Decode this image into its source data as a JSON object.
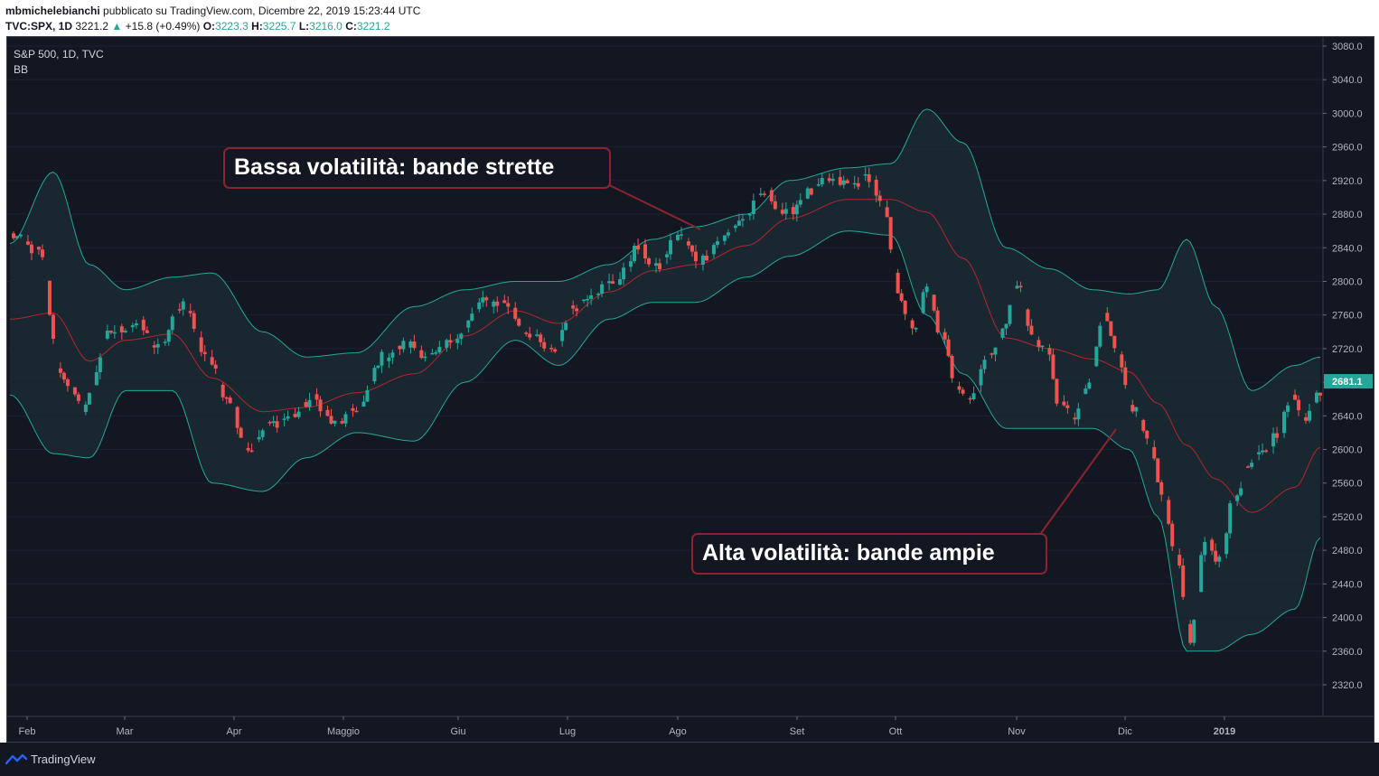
{
  "header": {
    "author": "mbmichelebianchi",
    "published_text": "pubblicato su TradingView.com, Dicembre 22, 2019 15:23:44 UTC",
    "symbol": "TVC:SPX, 1D",
    "last": "3221.2",
    "change_arrow": "▲",
    "change": "+15.8 (+0.49%)",
    "open_label": "O:",
    "open": "3223.3",
    "high_label": "H:",
    "high": "3225.7",
    "low_label": "L:",
    "low": "3216.0",
    "close_label": "C:",
    "close": "3221.2"
  },
  "legend": {
    "title": "S&P 500, 1D, TVC",
    "indicator": "BB"
  },
  "callouts": {
    "low_volatility": "Bassa volatilità: bande strette",
    "high_volatility": "Alta volatilità: bande ampie"
  },
  "footer": {
    "brand": "TradingView"
  },
  "colors": {
    "background": "#131722",
    "up": "#26a69a",
    "down": "#ef5350",
    "band": "#26a69a",
    "basis": "#b5252d",
    "callout_border": "#8b2430",
    "price_tag": "#26a69a"
  },
  "chart_data": {
    "type": "candlestick",
    "symbol": "S&P 500",
    "interval": "1D",
    "indicator": "Bollinger Bands",
    "x_ticks": [
      "Feb",
      "Mar",
      "Apr",
      "Maggio",
      "Giu",
      "Lug",
      "Ago",
      "Set",
      "Ott",
      "Nov",
      "Dic",
      "2019"
    ],
    "y_ticks": [
      3080.0,
      3040.0,
      3000.0,
      2960.0,
      2920.0,
      2880.0,
      2840.0,
      2800.0,
      2760.0,
      2720.0,
      2680.0,
      2640.0,
      2600.0,
      2560.0,
      2520.0,
      2480.0,
      2440.0,
      2400.0,
      2360.0,
      2320.0
    ],
    "ylim": [
      2290,
      3090
    ],
    "last_price_label": "2681.1",
    "close_anchors": [
      {
        "t": 0,
        "v": 2855
      },
      {
        "t": 8,
        "v": 2835
      },
      {
        "t": 14,
        "v": 2690
      },
      {
        "t": 20,
        "v": 2650
      },
      {
        "t": 28,
        "v": 2740
      },
      {
        "t": 35,
        "v": 2750
      },
      {
        "t": 41,
        "v": 2720
      },
      {
        "t": 48,
        "v": 2775
      },
      {
        "t": 54,
        "v": 2715
      },
      {
        "t": 60,
        "v": 2665
      },
      {
        "t": 66,
        "v": 2600
      },
      {
        "t": 72,
        "v": 2630
      },
      {
        "t": 78,
        "v": 2640
      },
      {
        "t": 84,
        "v": 2660
      },
      {
        "t": 90,
        "v": 2630
      },
      {
        "t": 97,
        "v": 2650
      },
      {
        "t": 103,
        "v": 2710
      },
      {
        "t": 110,
        "v": 2725
      },
      {
        "t": 117,
        "v": 2710
      },
      {
        "t": 124,
        "v": 2735
      },
      {
        "t": 131,
        "v": 2775
      },
      {
        "t": 137,
        "v": 2775
      },
      {
        "t": 143,
        "v": 2740
      },
      {
        "t": 150,
        "v": 2715
      },
      {
        "t": 156,
        "v": 2770
      },
      {
        "t": 162,
        "v": 2790
      },
      {
        "t": 168,
        "v": 2800
      },
      {
        "t": 174,
        "v": 2840
      },
      {
        "t": 179,
        "v": 2815
      },
      {
        "t": 185,
        "v": 2855
      },
      {
        "t": 191,
        "v": 2825
      },
      {
        "t": 197,
        "v": 2850
      },
      {
        "t": 203,
        "v": 2875
      },
      {
        "t": 209,
        "v": 2905
      },
      {
        "t": 215,
        "v": 2880
      },
      {
        "t": 221,
        "v": 2905
      },
      {
        "t": 227,
        "v": 2920
      },
      {
        "t": 233,
        "v": 2915
      },
      {
        "t": 238,
        "v": 2925
      },
      {
        "t": 242,
        "v": 2885
      },
      {
        "t": 246,
        "v": 2790
      },
      {
        "t": 250,
        "v": 2740
      },
      {
        "t": 254,
        "v": 2790
      },
      {
        "t": 258,
        "v": 2735
      },
      {
        "t": 262,
        "v": 2680
      },
      {
        "t": 266,
        "v": 2660
      },
      {
        "t": 270,
        "v": 2705
      },
      {
        "t": 275,
        "v": 2740
      },
      {
        "t": 279,
        "v": 2800
      },
      {
        "t": 283,
        "v": 2735
      },
      {
        "t": 287,
        "v": 2720
      },
      {
        "t": 291,
        "v": 2650
      },
      {
        "t": 295,
        "v": 2640
      },
      {
        "t": 299,
        "v": 2680
      },
      {
        "t": 303,
        "v": 2760
      },
      {
        "t": 307,
        "v": 2710
      },
      {
        "t": 311,
        "v": 2650
      },
      {
        "t": 315,
        "v": 2620
      },
      {
        "t": 319,
        "v": 2545
      },
      {
        "t": 323,
        "v": 2470
      },
      {
        "t": 327,
        "v": 2375
      },
      {
        "t": 331,
        "v": 2490
      },
      {
        "t": 335,
        "v": 2470
      },
      {
        "t": 339,
        "v": 2540
      },
      {
        "t": 343,
        "v": 2580
      },
      {
        "t": 347,
        "v": 2595
      },
      {
        "t": 351,
        "v": 2620
      },
      {
        "t": 355,
        "v": 2660
      },
      {
        "t": 359,
        "v": 2640
      },
      {
        "t": 363,
        "v": 2670
      }
    ],
    "bb_upper_anchors": [
      {
        "t": 0,
        "v": 2845
      },
      {
        "t": 12,
        "v": 2930
      },
      {
        "t": 22,
        "v": 2820
      },
      {
        "t": 32,
        "v": 2790
      },
      {
        "t": 45,
        "v": 2805
      },
      {
        "t": 56,
        "v": 2810
      },
      {
        "t": 70,
        "v": 2740
      },
      {
        "t": 82,
        "v": 2710
      },
      {
        "t": 96,
        "v": 2715
      },
      {
        "t": 112,
        "v": 2770
      },
      {
        "t": 126,
        "v": 2790
      },
      {
        "t": 140,
        "v": 2800
      },
      {
        "t": 152,
        "v": 2800
      },
      {
        "t": 166,
        "v": 2820
      },
      {
        "t": 178,
        "v": 2850
      },
      {
        "t": 190,
        "v": 2865
      },
      {
        "t": 204,
        "v": 2880
      },
      {
        "t": 216,
        "v": 2920
      },
      {
        "t": 232,
        "v": 2935
      },
      {
        "t": 244,
        "v": 2940
      },
      {
        "t": 254,
        "v": 3005
      },
      {
        "t": 264,
        "v": 2965
      },
      {
        "t": 276,
        "v": 2840
      },
      {
        "t": 288,
        "v": 2815
      },
      {
        "t": 300,
        "v": 2790
      },
      {
        "t": 310,
        "v": 2785
      },
      {
        "t": 318,
        "v": 2790
      },
      {
        "t": 326,
        "v": 2850
      },
      {
        "t": 334,
        "v": 2770
      },
      {
        "t": 344,
        "v": 2670
      },
      {
        "t": 356,
        "v": 2700
      },
      {
        "t": 363,
        "v": 2710
      }
    ],
    "bb_lower_anchors": [
      {
        "t": 0,
        "v": 2665
      },
      {
        "t": 12,
        "v": 2595
      },
      {
        "t": 22,
        "v": 2590
      },
      {
        "t": 32,
        "v": 2670
      },
      {
        "t": 45,
        "v": 2670
      },
      {
        "t": 56,
        "v": 2560
      },
      {
        "t": 70,
        "v": 2550
      },
      {
        "t": 82,
        "v": 2590
      },
      {
        "t": 96,
        "v": 2620
      },
      {
        "t": 112,
        "v": 2610
      },
      {
        "t": 126,
        "v": 2680
      },
      {
        "t": 140,
        "v": 2730
      },
      {
        "t": 152,
        "v": 2700
      },
      {
        "t": 166,
        "v": 2755
      },
      {
        "t": 178,
        "v": 2775
      },
      {
        "t": 190,
        "v": 2775
      },
      {
        "t": 204,
        "v": 2805
      },
      {
        "t": 216,
        "v": 2830
      },
      {
        "t": 232,
        "v": 2860
      },
      {
        "t": 244,
        "v": 2855
      },
      {
        "t": 254,
        "v": 2760
      },
      {
        "t": 264,
        "v": 2690
      },
      {
        "t": 276,
        "v": 2625
      },
      {
        "t": 288,
        "v": 2625
      },
      {
        "t": 300,
        "v": 2625
      },
      {
        "t": 310,
        "v": 2600
      },
      {
        "t": 318,
        "v": 2520
      },
      {
        "t": 326,
        "v": 2360
      },
      {
        "t": 334,
        "v": 2360
      },
      {
        "t": 344,
        "v": 2380
      },
      {
        "t": 356,
        "v": 2410
      },
      {
        "t": 363,
        "v": 2495
      }
    ]
  }
}
